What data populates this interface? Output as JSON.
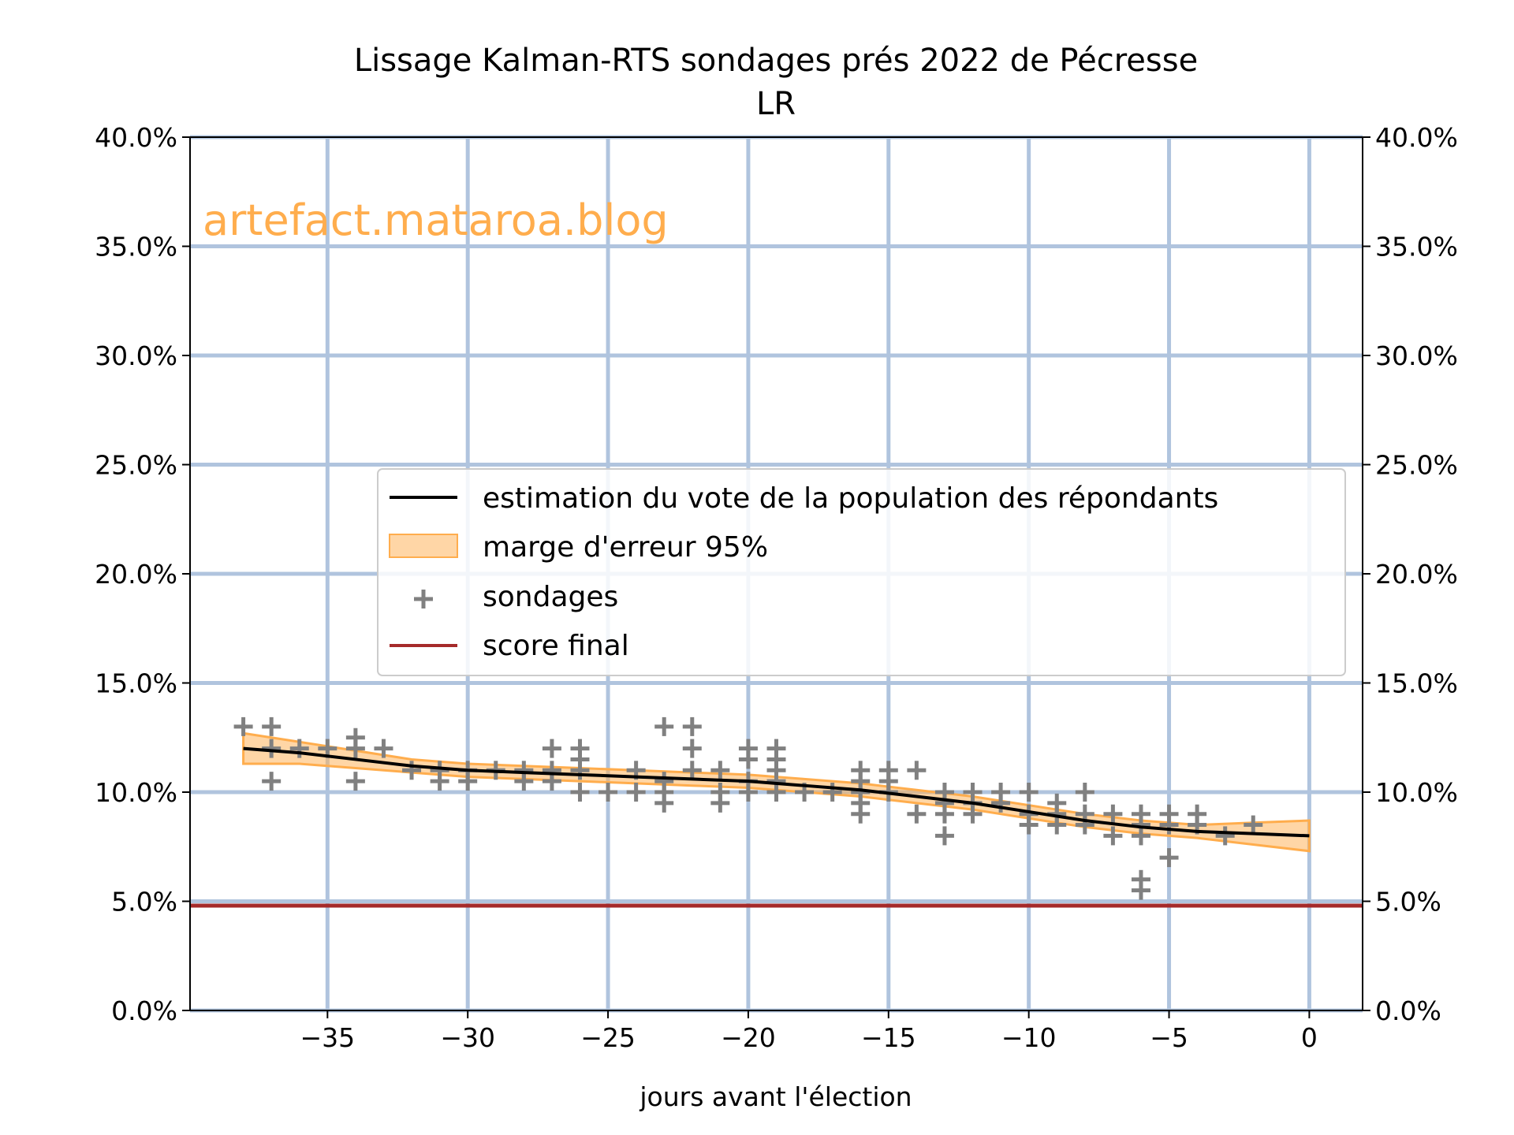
{
  "chart_data": {
    "type": "line",
    "title": "Lissage Kalman-RTS sondages prés 2022 de Pécresse",
    "subtitle": "LR",
    "xlabel": "jours avant l'élection",
    "ylabel": "",
    "xlim": [
      -39.9,
      1.9
    ],
    "ylim": [
      0,
      40
    ],
    "x_ticks": [
      -35,
      -30,
      -25,
      -20,
      -15,
      -10,
      -5,
      0
    ],
    "x_tick_labels": [
      "−35",
      "−30",
      "−25",
      "−20",
      "−15",
      "−10",
      "−5",
      "0"
    ],
    "y_ticks": [
      0,
      5,
      10,
      15,
      20,
      25,
      30,
      35,
      40
    ],
    "y_tick_labels": [
      "0.0%",
      "5.0%",
      "10.0%",
      "15.0%",
      "20.0%",
      "25.0%",
      "30.0%",
      "35.0%",
      "40.0%"
    ],
    "grid": true,
    "grid_color": "#b0c4de",
    "legend_placement": "center-right",
    "watermark": "artefact.mataroa.blog",
    "watermark_color": "#ffad4d",
    "series": [
      {
        "name": "estimation du vote de la population des répondants",
        "kind": "line",
        "color": "#000000",
        "x": [
          -38,
          -36,
          -34,
          -32,
          -30,
          -28,
          -26,
          -24,
          -22,
          -20,
          -18,
          -16,
          -14,
          -12,
          -10,
          -8,
          -6,
          -4,
          -2,
          0
        ],
        "y": [
          12.0,
          11.8,
          11.5,
          11.2,
          11.0,
          10.9,
          10.8,
          10.7,
          10.6,
          10.5,
          10.3,
          10.1,
          9.8,
          9.5,
          9.1,
          8.7,
          8.4,
          8.2,
          8.1,
          8.0
        ]
      },
      {
        "name": "marge d'erreur 95%",
        "kind": "band",
        "color": "#ffad4d",
        "x": [
          -38,
          -36,
          -34,
          -32,
          -30,
          -28,
          -26,
          -24,
          -22,
          -20,
          -18,
          -16,
          -14,
          -12,
          -10,
          -8,
          -6,
          -4,
          -2,
          0
        ],
        "lower": [
          11.3,
          11.3,
          11.1,
          10.9,
          10.7,
          10.6,
          10.5,
          10.4,
          10.3,
          10.2,
          10.0,
          9.8,
          9.5,
          9.2,
          8.8,
          8.4,
          8.1,
          7.9,
          7.6,
          7.3
        ],
        "upper": [
          12.7,
          12.3,
          11.9,
          11.5,
          11.3,
          11.2,
          11.1,
          11.0,
          10.9,
          10.8,
          10.6,
          10.4,
          10.1,
          9.8,
          9.4,
          9.0,
          8.7,
          8.5,
          8.6,
          8.7
        ]
      },
      {
        "name": "sondages",
        "kind": "scatter",
        "color": "#808080",
        "marker": "plus",
        "x": [
          -38,
          -37,
          -37,
          -37,
          -36,
          -35,
          -34,
          -34,
          -34,
          -33,
          -32,
          -31,
          -31,
          -30,
          -30,
          -29,
          -28,
          -28,
          -27,
          -27,
          -27,
          -26,
          -26,
          -26,
          -26,
          -25,
          -24,
          -24,
          -23,
          -23,
          -23,
          -23,
          -22,
          -22,
          -22,
          -21,
          -21,
          -21,
          -20,
          -20,
          -20,
          -20,
          -19,
          -19,
          -19,
          -19,
          -19,
          -18,
          -17,
          -16,
          -16,
          -16,
          -16,
          -16,
          -15,
          -15,
          -15,
          -14,
          -14,
          -13,
          -13,
          -13,
          -13,
          -12,
          -12,
          -12,
          -11,
          -11,
          -10,
          -10,
          -10,
          -9,
          -9,
          -9,
          -8,
          -8,
          -8,
          -7,
          -7,
          -6,
          -6,
          -6,
          -6,
          -6,
          -5,
          -5,
          -5,
          -4,
          -4,
          -3,
          -2
        ],
        "y": [
          13,
          13,
          12,
          10.5,
          12,
          12,
          12.5,
          12,
          10.5,
          12,
          11,
          11,
          10.5,
          11,
          10.5,
          11,
          11,
          10.5,
          12,
          11,
          10.5,
          12,
          11.5,
          11,
          10,
          10,
          11,
          10,
          13,
          10.5,
          10,
          9.5,
          13,
          12,
          11,
          11,
          10,
          9.5,
          12,
          11.5,
          10.5,
          10,
          12,
          11.5,
          11,
          10.5,
          10,
          10,
          10,
          11,
          10.5,
          10,
          9.5,
          9,
          11,
          10.5,
          10,
          11,
          9,
          10,
          9.5,
          9,
          8,
          10,
          9.5,
          9,
          10,
          9.5,
          10,
          9,
          8.5,
          9.5,
          9,
          8.5,
          10,
          9,
          8.5,
          9,
          8,
          9,
          8.5,
          8,
          6,
          5.5,
          9,
          8.5,
          7,
          9,
          8.5,
          8,
          8.5
        ]
      },
      {
        "name": "score final",
        "kind": "hline",
        "color": "#a52a2a",
        "y": 4.8
      }
    ]
  }
}
